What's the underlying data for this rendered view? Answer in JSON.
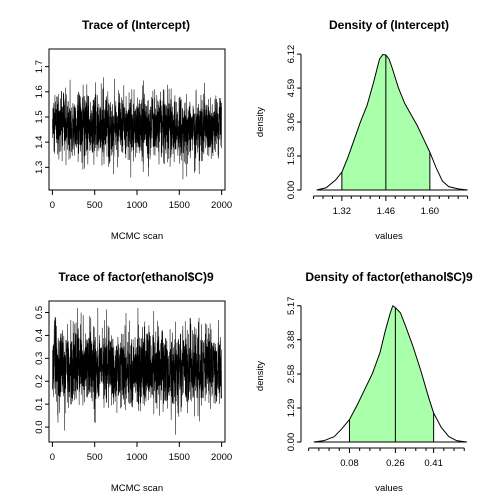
{
  "chart_data": [
    {
      "type": "line",
      "title": "Trace of (Intercept)",
      "xlabel": "MCMC scan",
      "ylabel": "",
      "xlim": [
        -40,
        2040
      ],
      "ylim": [
        1.21,
        1.77
      ],
      "xticks": [
        0,
        500,
        1000,
        1500,
        2000
      ],
      "yticks": [
        1.3,
        1.4,
        1.5,
        1.6,
        1.7
      ],
      "xtick_labels": [
        "0",
        "500",
        "1000",
        "1500",
        "2000"
      ],
      "ytick_labels": [
        "1.3",
        "1.4",
        "1.5",
        "1.6",
        "1.7"
      ],
      "n_iter": 2000,
      "trace_stats": {
        "center": 1.46,
        "sd": 0.065,
        "min": 1.24,
        "max": 1.73
      }
    },
    {
      "type": "area",
      "title": "Density of (Intercept)",
      "xlabel": "values",
      "ylabel": "density",
      "xlim": [
        1.19,
        1.75
      ],
      "ylim": [
        0,
        6.35
      ],
      "xticks": [
        1.32,
        1.46,
        1.6
      ],
      "yticks": [
        0,
        1.53,
        3.06,
        4.59,
        6.12
      ],
      "xtick_labels": [
        "1.32",
        "1.46",
        "1.60"
      ],
      "ytick_labels": [
        "0.00",
        "1.53",
        "3.06",
        "4.59",
        "6.12"
      ],
      "minor_xticks": [
        1.23,
        1.26,
        1.29,
        1.35,
        1.38,
        1.41,
        1.44,
        1.49,
        1.52,
        1.55,
        1.58,
        1.63,
        1.66,
        1.69,
        1.72
      ],
      "x": [
        1.24,
        1.27,
        1.3,
        1.32,
        1.34,
        1.36,
        1.38,
        1.4,
        1.42,
        1.44,
        1.45,
        1.46,
        1.47,
        1.48,
        1.5,
        1.52,
        1.54,
        1.56,
        1.58,
        1.6,
        1.62,
        1.64,
        1.66,
        1.69,
        1.72
      ],
      "y": [
        0.0,
        0.1,
        0.45,
        0.8,
        1.5,
        2.3,
        3.1,
        3.8,
        4.8,
        5.9,
        6.1,
        6.08,
        5.9,
        5.5,
        4.6,
        3.9,
        3.4,
        2.9,
        2.3,
        1.7,
        1.0,
        0.4,
        0.15,
        0.05,
        0.0
      ],
      "shaded_interval": [
        1.32,
        1.6
      ],
      "marker_line": 1.46
    },
    {
      "type": "line",
      "title": "Trace of factor(ethanol$C)9",
      "xlabel": "MCMC scan",
      "ylabel": "",
      "xlim": [
        -40,
        2040
      ],
      "ylim": [
        -0.065,
        0.55
      ],
      "xticks": [
        0,
        500,
        1000,
        1500,
        2000
      ],
      "yticks": [
        0.0,
        0.1,
        0.2,
        0.3,
        0.4,
        0.5
      ],
      "xtick_labels": [
        "0",
        "500",
        "1000",
        "1500",
        "2000"
      ],
      "ytick_labels": [
        "0.0",
        "0.1",
        "0.2",
        "0.3",
        "0.4",
        "0.5"
      ],
      "n_iter": 2000,
      "trace_stats": {
        "center": 0.26,
        "sd": 0.085,
        "min": -0.04,
        "max": 0.52
      }
    },
    {
      "type": "area",
      "title": "Density of factor(ethanol$C)9",
      "xlabel": "values",
      "ylabel": "density",
      "xlim": [
        -0.11,
        0.58
      ],
      "ylim": [
        0,
        5.35
      ],
      "xticks": [
        0.08,
        0.26,
        0.41
      ],
      "yticks": [
        0,
        1.29,
        2.58,
        3.88,
        5.17
      ],
      "xtick_labels": [
        "0.08",
        "0.26",
        "0.41"
      ],
      "ytick_labels": [
        "0.00",
        "1.29",
        "2.58",
        "3.88",
        "5.17"
      ],
      "minor_xticks": [
        -0.08,
        -0.04,
        0.0,
        0.04,
        0.12,
        0.16,
        0.2,
        0.3,
        0.34,
        0.38,
        0.45,
        0.49,
        0.53
      ],
      "x": [
        -0.06,
        -0.02,
        0.02,
        0.05,
        0.08,
        0.11,
        0.14,
        0.17,
        0.2,
        0.22,
        0.24,
        0.25,
        0.26,
        0.28,
        0.3,
        0.33,
        0.36,
        0.39,
        0.41,
        0.44,
        0.47,
        0.5,
        0.54
      ],
      "y": [
        0.0,
        0.05,
        0.2,
        0.5,
        0.85,
        1.4,
        2.0,
        2.6,
        3.4,
        4.2,
        4.9,
        5.17,
        5.1,
        4.9,
        4.4,
        3.6,
        2.7,
        1.7,
        1.1,
        0.55,
        0.2,
        0.05,
        0.0
      ],
      "shaded_interval": [
        0.08,
        0.41
      ],
      "marker_line": 0.26
    }
  ],
  "style": {
    "fill_color": "#aaffaa",
    "line_color": "#000000",
    "background": "#ffffff"
  }
}
